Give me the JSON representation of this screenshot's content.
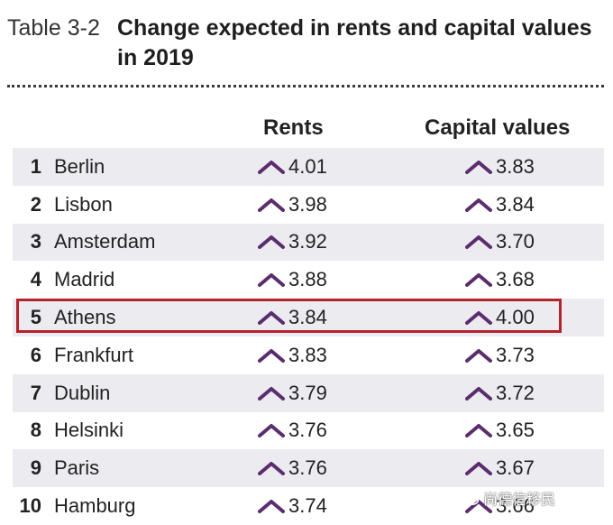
{
  "header": {
    "label": "Table 3-2",
    "title_line1": "Change expected in rents and capital values",
    "title_line2": "in 2019"
  },
  "columns": {
    "rents": "Rents",
    "capital": "Capital values"
  },
  "rows": [
    {
      "rank": "1",
      "city": "Berlin",
      "rents": "4.01",
      "capital": "3.83"
    },
    {
      "rank": "2",
      "city": "Lisbon",
      "rents": "3.98",
      "capital": "3.84"
    },
    {
      "rank": "3",
      "city": "Amsterdam",
      "rents": "3.92",
      "capital": "3.70"
    },
    {
      "rank": "4",
      "city": "Madrid",
      "rents": "3.88",
      "capital": "3.68"
    },
    {
      "rank": "5",
      "city": "Athens",
      "rents": "3.84",
      "capital": "4.00"
    },
    {
      "rank": "6",
      "city": "Frankfurt",
      "rents": "3.83",
      "capital": "3.73"
    },
    {
      "rank": "7",
      "city": "Dublin",
      "rents": "3.79",
      "capital": "3.72"
    },
    {
      "rank": "8",
      "city": "Helsinki",
      "rents": "3.76",
      "capital": "3.65"
    },
    {
      "rank": "9",
      "city": "Paris",
      "rents": "3.76",
      "capital": "3.67"
    },
    {
      "rank": "10",
      "city": "Hamburg",
      "rents": "3.74",
      "capital": "3.66"
    }
  ],
  "highlighted_row": "5",
  "watermark": {
    "text": "尚德信移民",
    "icon": "wechat-icon"
  },
  "colors": {
    "chevron": "#5b2d6e",
    "highlight": "#b3232e",
    "row_shade": "#ecebf0"
  }
}
